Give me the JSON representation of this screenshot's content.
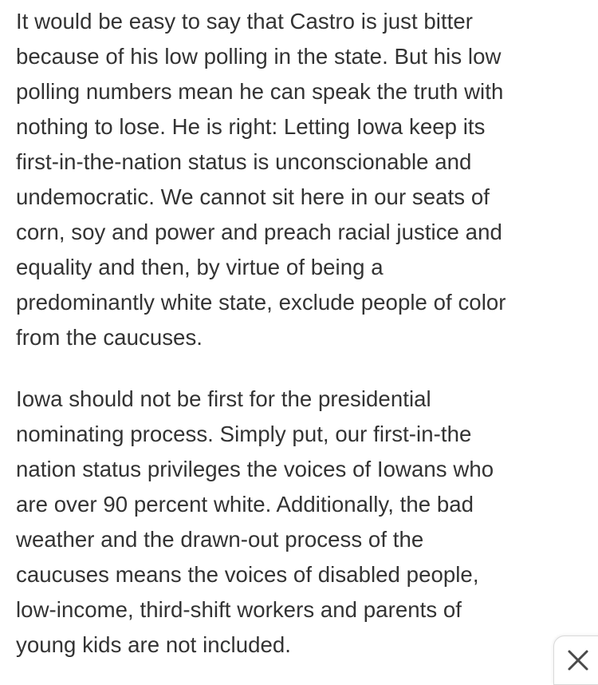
{
  "article": {
    "paragraphs": [
      {
        "lines": [
          "It would be easy to say that Castro is just bitter",
          "because of his low polling in the state. But his low",
          "polling numbers mean he can speak the truth with",
          "nothing to lose. He is right: Letting Iowa keep its",
          "first-in-the-nation status is unconscionable and",
          "undemocratic. We cannot sit here in our seats of",
          "corn, soy and power and preach racial justice and",
          "equality and then, by virtue of being a",
          "predominantly white state, exclude people of color",
          "from the caucuses."
        ]
      },
      {
        "lines": [
          "Iowa should not be first for the presidential",
          "nominating process. Simply put, our first-in-the",
          "nation status privileges the voices of Iowans who",
          "are over 90 percent white. Additionally, the bad",
          "weather and the drawn-out process of the",
          "caucuses means the voices of disabled people,",
          "low-income, third-shift workers and parents of",
          "young kids are not included."
        ]
      }
    ]
  },
  "controls": {
    "close_icon": "close-icon"
  }
}
